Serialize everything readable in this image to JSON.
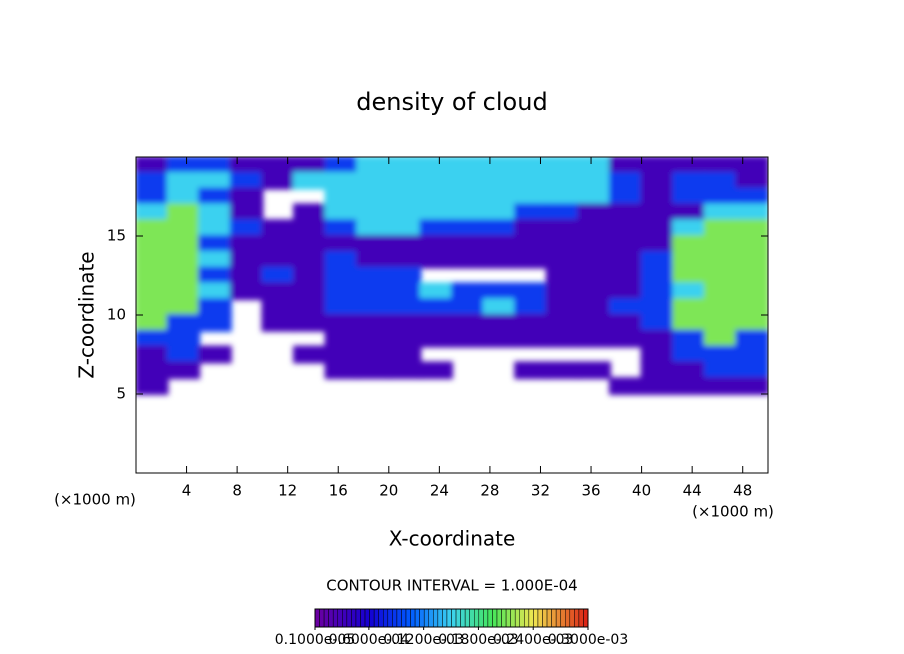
{
  "chart_data": {
    "type": "heatmap",
    "title": "density of cloud",
    "x_label": "X-coordinate",
    "y_label": "Z-coordinate",
    "x_unit_label": "(×1000 m)",
    "annotation": "CONTOUR INTERVAL = 1.000E-04",
    "xlim": [
      0,
      50
    ],
    "xticks": [
      4,
      8,
      12,
      16,
      20,
      24,
      28,
      32,
      36,
      40,
      44,
      48
    ],
    "ylim": [
      0,
      20
    ],
    "yticks": [
      5,
      10,
      15
    ],
    "x": [
      1.25,
      3.75,
      6.25,
      8.75,
      11.25,
      13.75,
      16.25,
      18.75,
      21.25,
      23.75,
      26.25,
      28.75,
      31.25,
      33.75,
      36.25,
      38.75,
      41.25,
      43.75,
      46.25,
      48.75
    ],
    "y": [
      19.5,
      18.5,
      17.5,
      16.5,
      15.5,
      14.5,
      13.5,
      12.5,
      11.5,
      10.5,
      9.5,
      8.5,
      7.5,
      6.5,
      5.5
    ],
    "values": [
      [
        3e-05,
        9e-05,
        9e-05,
        3e-05,
        3e-05,
        3e-05,
        9e-05,
        0.00015,
        0.00015,
        0.00015,
        0.00015,
        0.00015,
        0.00015,
        0.00015,
        0.00015,
        3e-05,
        3e-05,
        3e-05,
        3e-05,
        3e-05
      ],
      [
        9e-05,
        0.00015,
        0.00015,
        9e-05,
        3e-05,
        0.00015,
        0.00015,
        0.00015,
        0.00015,
        0.00015,
        0.00015,
        0.00015,
        0.00015,
        0.00015,
        0.00015,
        9e-05,
        3e-05,
        9e-05,
        9e-05,
        3e-05
      ],
      [
        9e-05,
        0.00015,
        9e-05,
        3e-05,
        null,
        null,
        0.00015,
        0.00015,
        0.00015,
        0.00015,
        0.00015,
        0.00015,
        0.00015,
        0.00015,
        0.00015,
        9e-05,
        3e-05,
        9e-05,
        9e-05,
        9e-05
      ],
      [
        0.00015,
        0.00021,
        0.00015,
        3e-05,
        null,
        3e-05,
        0.00015,
        0.00015,
        0.00015,
        0.00015,
        0.00015,
        0.00015,
        9e-05,
        9e-05,
        3e-05,
        3e-05,
        3e-05,
        3e-05,
        0.00015,
        0.00015
      ],
      [
        0.00021,
        0.00021,
        0.00015,
        9e-05,
        3e-05,
        3e-05,
        9e-05,
        0.00015,
        0.00015,
        9e-05,
        9e-05,
        9e-05,
        3e-05,
        3e-05,
        3e-05,
        3e-05,
        3e-05,
        0.00015,
        0.00021,
        0.00021
      ],
      [
        0.00021,
        0.00021,
        9e-05,
        3e-05,
        3e-05,
        3e-05,
        3e-05,
        3e-05,
        3e-05,
        3e-05,
        3e-05,
        3e-05,
        3e-05,
        3e-05,
        3e-05,
        3e-05,
        3e-05,
        0.00021,
        0.00021,
        0.00021
      ],
      [
        0.00021,
        0.00021,
        0.00015,
        3e-05,
        3e-05,
        3e-05,
        9e-05,
        3e-05,
        3e-05,
        3e-05,
        3e-05,
        3e-05,
        3e-05,
        3e-05,
        3e-05,
        3e-05,
        9e-05,
        0.00021,
        0.00021,
        0.00021
      ],
      [
        0.00021,
        0.00021,
        9e-05,
        3e-05,
        9e-05,
        3e-05,
        9e-05,
        9e-05,
        9e-05,
        null,
        null,
        null,
        null,
        3e-05,
        3e-05,
        3e-05,
        9e-05,
        0.00021,
        0.00021,
        0.00021
      ],
      [
        0.00021,
        0.00021,
        0.00015,
        3e-05,
        3e-05,
        3e-05,
        9e-05,
        9e-05,
        9e-05,
        0.00015,
        9e-05,
        9e-05,
        9e-05,
        3e-05,
        3e-05,
        3e-05,
        9e-05,
        0.00015,
        0.00021,
        0.00021
      ],
      [
        0.00021,
        0.00021,
        9e-05,
        null,
        3e-05,
        3e-05,
        9e-05,
        9e-05,
        9e-05,
        9e-05,
        9e-05,
        0.00015,
        9e-05,
        3e-05,
        3e-05,
        9e-05,
        9e-05,
        0.00021,
        0.00021,
        0.00021
      ],
      [
        0.00021,
        9e-05,
        9e-05,
        null,
        3e-05,
        3e-05,
        3e-05,
        3e-05,
        3e-05,
        3e-05,
        3e-05,
        3e-05,
        3e-05,
        3e-05,
        3e-05,
        3e-05,
        9e-05,
        0.00021,
        0.00021,
        0.00021
      ],
      [
        9e-05,
        9e-05,
        null,
        null,
        null,
        null,
        3e-05,
        3e-05,
        3e-05,
        3e-05,
        3e-05,
        3e-05,
        3e-05,
        3e-05,
        3e-05,
        3e-05,
        3e-05,
        9e-05,
        0.00021,
        9e-05
      ],
      [
        3e-05,
        9e-05,
        3e-05,
        null,
        null,
        3e-05,
        3e-05,
        3e-05,
        3e-05,
        null,
        null,
        null,
        null,
        null,
        null,
        null,
        3e-05,
        9e-05,
        9e-05,
        9e-05
      ],
      [
        3e-05,
        3e-05,
        null,
        null,
        null,
        null,
        3e-05,
        3e-05,
        3e-05,
        3e-05,
        null,
        null,
        3e-05,
        3e-05,
        3e-05,
        null,
        3e-05,
        3e-05,
        9e-05,
        9e-05
      ],
      [
        3e-05,
        null,
        null,
        null,
        null,
        null,
        null,
        null,
        null,
        null,
        null,
        null,
        null,
        null,
        null,
        3e-05,
        3e-05,
        3e-05,
        3e-05,
        3e-05
      ]
    ],
    "colorbar_ticks": [
      {
        "value": 1e-06,
        "label": "0.1000e-05"
      },
      {
        "value": 6e-05,
        "label": "0.6000e-04"
      },
      {
        "value": 0.00012,
        "label": "0.1200e-03"
      },
      {
        "value": 0.00018,
        "label": "0.1800e-03"
      },
      {
        "value": 0.00024,
        "label": "0.2400e-03"
      },
      {
        "value": 0.0003,
        "label": "0.3000e-03"
      }
    ]
  }
}
